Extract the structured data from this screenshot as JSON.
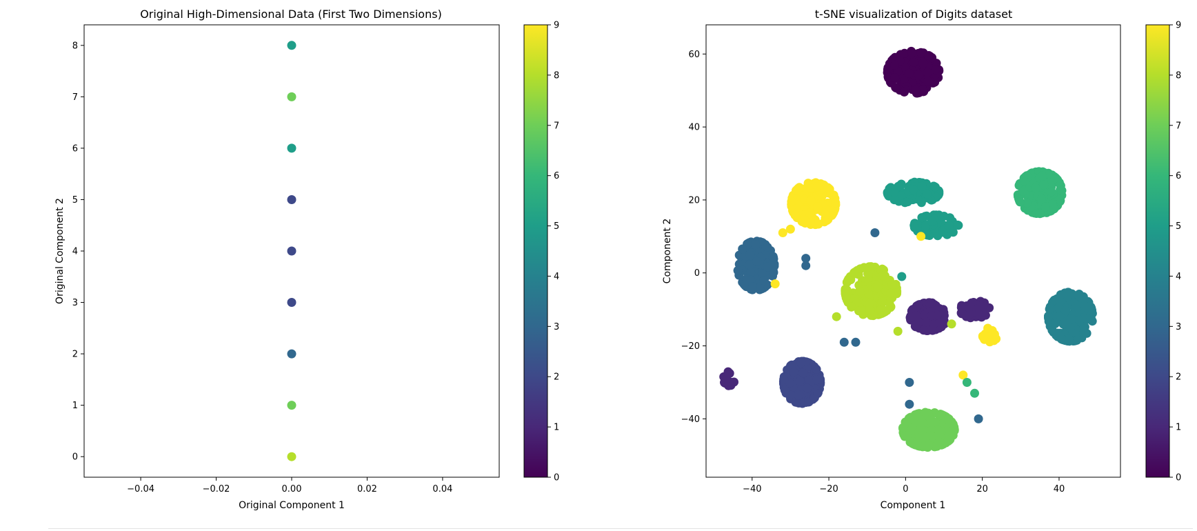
{
  "colormap": [
    "#440154",
    "#482878",
    "#3e4989",
    "#31688e",
    "#26828e",
    "#1f9e89",
    "#35b779",
    "#6ece58",
    "#b5de2b",
    "#fde725"
  ],
  "chart_data": [
    {
      "type": "scatter",
      "title": "Original High-Dimensional Data (First Two Dimensions)",
      "xlabel": "Original Component 1",
      "ylabel": "Original Component 2",
      "xlim": [
        -0.055,
        0.055
      ],
      "ylim": [
        -0.4,
        8.4
      ],
      "xticks": [
        -0.04,
        -0.02,
        0.0,
        0.02,
        0.04
      ],
      "xtick_labels": [
        "−0.04",
        "−0.02",
        "0.00",
        "0.02",
        "0.04"
      ],
      "yticks": [
        0,
        1,
        2,
        3,
        4,
        5,
        6,
        7,
        8
      ],
      "ytick_labels": [
        "0",
        "1",
        "2",
        "3",
        "4",
        "5",
        "6",
        "7",
        "8"
      ],
      "grid": false,
      "colorbar": {
        "min": 0,
        "max": 9,
        "ticks": [
          "0",
          "1",
          "2",
          "3",
          "4",
          "5",
          "6",
          "7",
          "8",
          "9"
        ]
      },
      "points": [
        {
          "x": 0,
          "y": 0,
          "c": 8
        },
        {
          "x": 0,
          "y": 1,
          "c": 7
        },
        {
          "x": 0,
          "y": 2,
          "c": 3
        },
        {
          "x": 0,
          "y": 3,
          "c": 2
        },
        {
          "x": 0,
          "y": 4,
          "c": 2
        },
        {
          "x": 0,
          "y": 5,
          "c": 2
        },
        {
          "x": 0,
          "y": 6,
          "c": 5
        },
        {
          "x": 0,
          "y": 7,
          "c": 7
        },
        {
          "x": 0,
          "y": 8,
          "c": 5
        }
      ]
    },
    {
      "type": "scatter",
      "title": "t-SNE visualization of Digits dataset",
      "xlabel": "Component 1",
      "ylabel": "Component 2",
      "xlim": [
        -52,
        56
      ],
      "ylim": [
        -56,
        68
      ],
      "xticks": [
        -40,
        -20,
        0,
        20,
        40
      ],
      "xtick_labels": [
        "−40",
        "−20",
        "0",
        "20",
        "40"
      ],
      "yticks": [
        -40,
        -20,
        0,
        20,
        40,
        60
      ],
      "ytick_labels": [
        "−40",
        "−20",
        "0",
        "20",
        "40",
        "60"
      ],
      "grid": false,
      "colorbar": {
        "min": 0,
        "max": 9,
        "ticks": [
          "0",
          "1",
          "2",
          "3",
          "4",
          "5",
          "6",
          "7",
          "8",
          "9"
        ]
      },
      "clusters": [
        {
          "label": 0,
          "cx": 2,
          "cy": 55,
          "rx": 7,
          "ry": 6,
          "n": 180
        },
        {
          "label": 5,
          "cx": 2,
          "cy": 22,
          "rx": 7,
          "ry": 3,
          "n": 100
        },
        {
          "label": 5,
          "cx": 8,
          "cy": 13,
          "rx": 6,
          "ry": 3,
          "n": 60
        },
        {
          "label": 6,
          "cx": 35,
          "cy": 22,
          "rx": 6,
          "ry": 6,
          "n": 180
        },
        {
          "label": 9,
          "cx": -24,
          "cy": 19,
          "rx": 6,
          "ry": 6,
          "n": 150
        },
        {
          "label": 3,
          "cx": -39,
          "cy": 2,
          "rx": 5,
          "ry": 7,
          "n": 150
        },
        {
          "label": 8,
          "cx": -9,
          "cy": -5,
          "rx": 7,
          "ry": 7,
          "n": 180
        },
        {
          "label": 1,
          "cx": 6,
          "cy": -12,
          "rx": 5,
          "ry": 4,
          "n": 110
        },
        {
          "label": 1,
          "cx": 18,
          "cy": -10,
          "rx": 4,
          "ry": 2.5,
          "n": 40
        },
        {
          "label": 9,
          "cx": 22,
          "cy": -17,
          "rx": 2,
          "ry": 2,
          "n": 15
        },
        {
          "label": 4,
          "cx": 43,
          "cy": -12,
          "rx": 6,
          "ry": 7,
          "n": 160
        },
        {
          "label": 2,
          "cx": -27,
          "cy": -30,
          "rx": 5,
          "ry": 6,
          "n": 180
        },
        {
          "label": 1,
          "cx": -46,
          "cy": -29,
          "rx": 1.5,
          "ry": 2,
          "n": 18
        },
        {
          "label": 7,
          "cx": 6,
          "cy": -43,
          "rx": 7,
          "ry": 5,
          "n": 180
        }
      ],
      "outliers": [
        {
          "x": -26,
          "y": 4,
          "c": 3
        },
        {
          "x": -26,
          "y": 2,
          "c": 3
        },
        {
          "x": -30,
          "y": 12,
          "c": 9
        },
        {
          "x": -32,
          "y": 11,
          "c": 9
        },
        {
          "x": -16,
          "y": -19,
          "c": 3
        },
        {
          "x": -13,
          "y": -19,
          "c": 3
        },
        {
          "x": -8,
          "y": 11,
          "c": 3
        },
        {
          "x": -1,
          "y": -1,
          "c": 5
        },
        {
          "x": 1,
          "y": -30,
          "c": 3
        },
        {
          "x": 1,
          "y": -36,
          "c": 3
        },
        {
          "x": 15,
          "y": -28,
          "c": 9
        },
        {
          "x": 16,
          "y": -30,
          "c": 6
        },
        {
          "x": 18,
          "y": -33,
          "c": 6
        },
        {
          "x": 19,
          "y": -40,
          "c": 3
        },
        {
          "x": -34,
          "y": -3,
          "c": 9
        },
        {
          "x": -18,
          "y": -12,
          "c": 8
        },
        {
          "x": -6,
          "y": -8,
          "c": 8
        },
        {
          "x": 12,
          "y": -14,
          "c": 8
        },
        {
          "x": -2,
          "y": -16,
          "c": 8
        },
        {
          "x": 4,
          "y": 10,
          "c": 9
        }
      ]
    }
  ]
}
